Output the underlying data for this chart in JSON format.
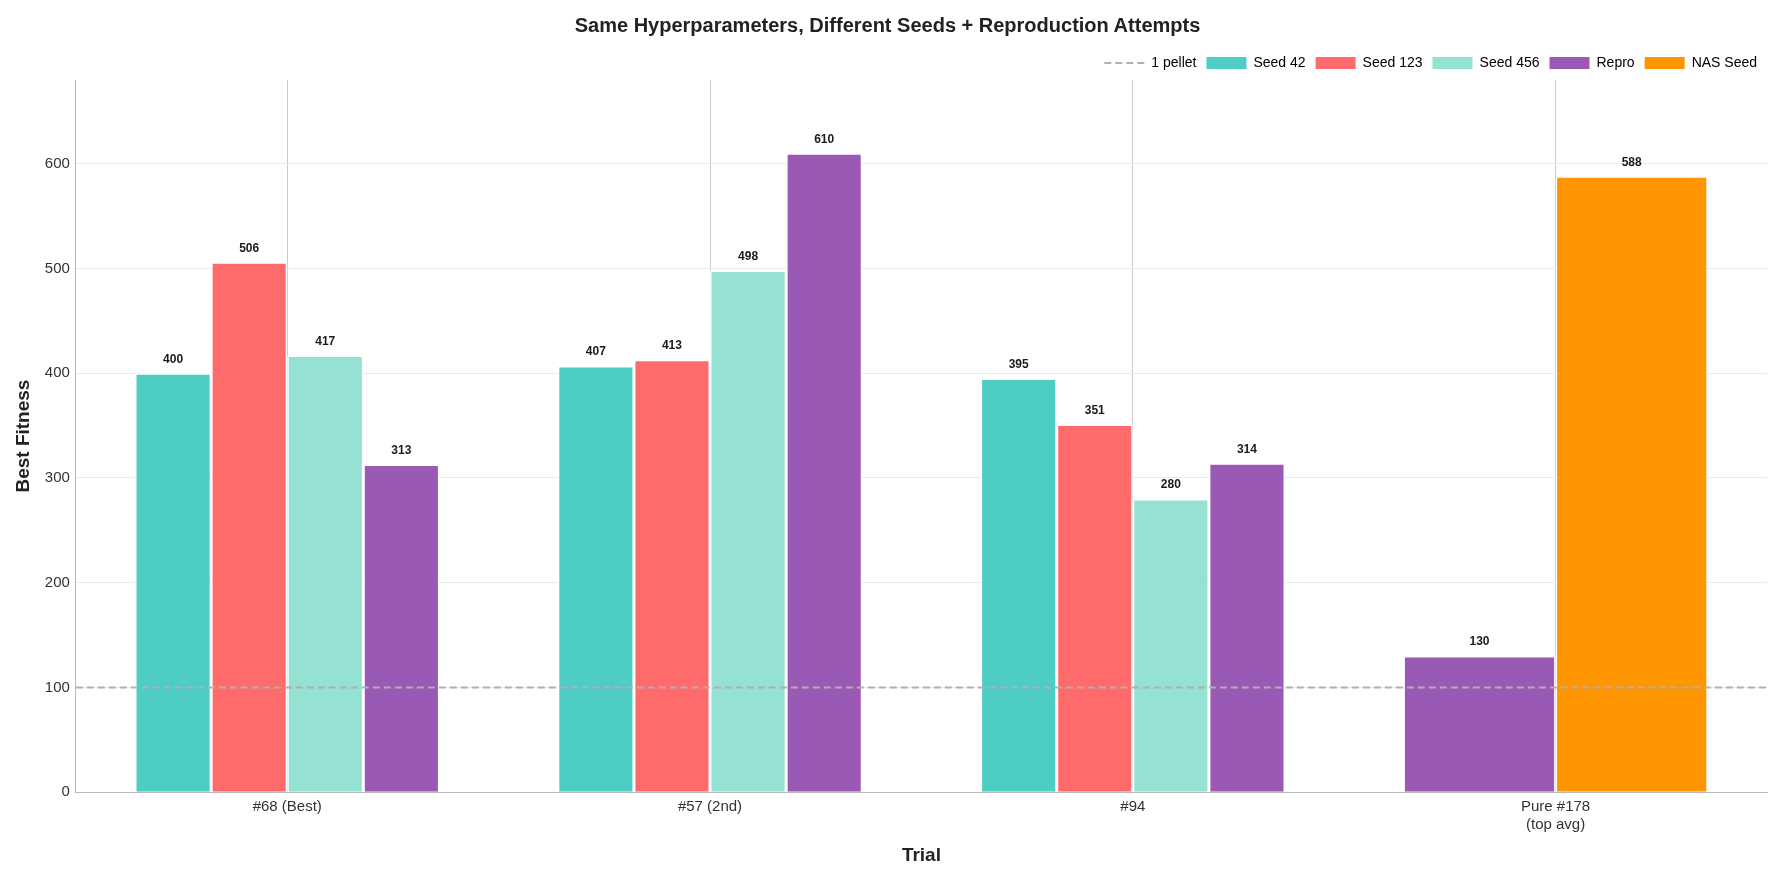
{
  "chart_data": {
    "type": "bar",
    "title": "Same Hyperparameters, Different Seeds + Reproduction Attempts",
    "xlabel": "Trial",
    "ylabel": "Best Fitness",
    "categories": [
      "#68 (Best)",
      "#57 (2nd)",
      "#94",
      "Pure #178\n(top avg)"
    ],
    "series": [
      {
        "name": "Seed 42",
        "color": "#4ecdc4",
        "values": [
          400,
          407,
          395,
          null
        ]
      },
      {
        "name": "Seed 123",
        "color": "#ff6b6b",
        "values": [
          506,
          413,
          351,
          null
        ]
      },
      {
        "name": "Seed 456",
        "color": "#95e1d3",
        "values": [
          417,
          498,
          280,
          null
        ]
      },
      {
        "name": "Repro",
        "color": "#9b59b6",
        "values": [
          313,
          610,
          314,
          130
        ]
      },
      {
        "name": "NAS Seed",
        "color": "#ff9500",
        "values": [
          null,
          null,
          null,
          588
        ]
      }
    ],
    "ref_lines": [
      {
        "axis": "y",
        "value": 100,
        "label": "1 pellet",
        "color": "#b0b0b0",
        "line_style": "dashed"
      }
    ],
    "ylim": [
      0,
      680
    ],
    "yticks": [
      0,
      100,
      200,
      300,
      400,
      500,
      600
    ],
    "grid": true,
    "legend": "top right",
    "data_labels": true
  }
}
